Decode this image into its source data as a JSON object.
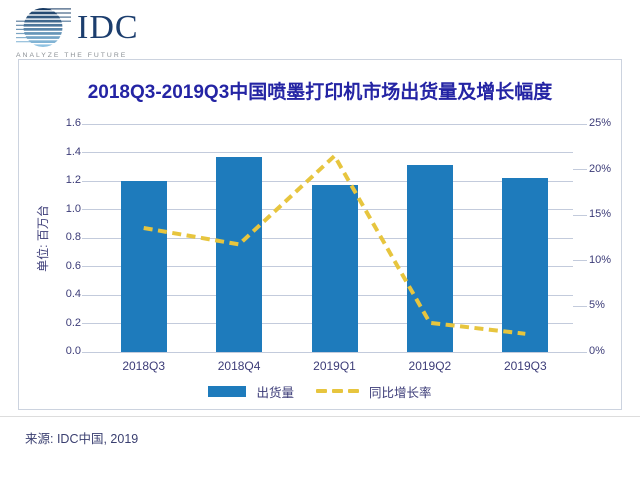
{
  "logo": {
    "name": "IDC",
    "tagline": "ANALYZE THE FUTURE"
  },
  "chart": {
    "title": "2018Q3-2019Q3中国喷墨打印机市场出货量及增长幅度",
    "y_left_title": "单位: 百万台",
    "legend_bar": "出货量",
    "legend_line": "同比增长率"
  },
  "source": "来源: IDC中国, 2019",
  "colors": {
    "bar": "#1e7bbc",
    "line": "#e7c53e",
    "title": "#2424a4",
    "axis_text": "#3c3c78",
    "grid": "#c3cbdc",
    "panel_border": "#ccd3df",
    "logo_navy": "#1c3e6e",
    "tagline_gray": "#8b9095"
  },
  "chart_data": {
    "type": "bar",
    "combo": "bar + dashed line, dual axis",
    "title": "2018Q3-2019Q3中国喷墨打印机市场出货量及增长幅度",
    "categories": [
      "2018Q3",
      "2018Q4",
      "2019Q1",
      "2019Q2",
      "2019Q3"
    ],
    "series": [
      {
        "name": "出货量",
        "type": "bar",
        "axis": "left",
        "unit": "百万台",
        "values": [
          1.2,
          1.37,
          1.17,
          1.31,
          1.22
        ]
      },
      {
        "name": "同比增长率",
        "type": "line",
        "style": "dashed",
        "axis": "right",
        "unit": "%",
        "values": [
          13.6,
          11.8,
          21.5,
          3.2,
          2.0
        ]
      }
    ],
    "ylabel_left": "单位: 百万台",
    "ylim_left": [
      0,
      1.6
    ],
    "ylim_right": [
      0,
      25
    ],
    "y_left_ticks": [
      "1.6",
      "1.4",
      "1.2",
      "1.0",
      "0.8",
      "0.6",
      "0.4",
      "0.2",
      "0.0"
    ],
    "y_right_ticks": [
      "25%",
      "20%",
      "15%",
      "10%",
      "5%",
      "0%"
    ],
    "grid": true,
    "legend_position": "bottom"
  }
}
